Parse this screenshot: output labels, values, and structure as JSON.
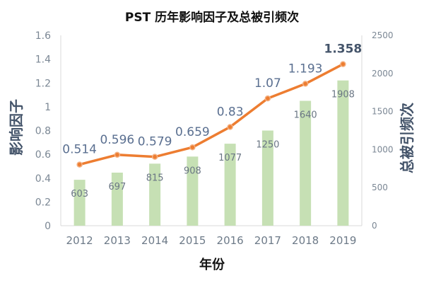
{
  "chart_data": {
    "type": "bar+line",
    "title": "PST 历年影响因子及总被引频次",
    "xlabel": "年份",
    "ylabel_left": "影响因子",
    "ylabel_right": "总被引频次",
    "categories": [
      "2012",
      "2013",
      "2014",
      "2015",
      "2016",
      "2017",
      "2018",
      "2019"
    ],
    "left_axis": {
      "min": 0,
      "max": 1.6,
      "ticks": [
        0,
        0.2,
        0.4,
        0.6,
        0.8,
        1,
        1.2,
        1.4,
        1.6
      ],
      "tick_labels": [
        "0",
        "0.2",
        "0.4",
        "0.6",
        "0.8",
        "1",
        "1.2",
        "1.4",
        "1.6"
      ]
    },
    "right_axis": {
      "min": 0,
      "max": 2500,
      "ticks": [
        0,
        500,
        1000,
        1500,
        2000,
        2500
      ],
      "tick_labels": [
        "0",
        "500",
        "1000",
        "1500",
        "2000",
        "2500"
      ]
    },
    "series": [
      {
        "name": "总被引频次",
        "kind": "bar",
        "axis": "right",
        "color": "#c6e0b4",
        "values": [
          603,
          697,
          815,
          908,
          1077,
          1250,
          1640,
          1908
        ],
        "labels": [
          "603",
          "697",
          "815",
          "908",
          "1077",
          "1250",
          "1640",
          "1908"
        ]
      },
      {
        "name": "影响因子",
        "kind": "line",
        "axis": "left",
        "color": "#ed7d31",
        "values": [
          0.514,
          0.596,
          0.579,
          0.659,
          0.83,
          1.07,
          1.193,
          1.358
        ],
        "labels": [
          "0.514",
          "0.596",
          "0.579",
          "0.659",
          "0.83",
          "1.07",
          "1.193",
          "1.358"
        ],
        "highlight_last": true
      }
    ],
    "grid": false,
    "legend": "none"
  }
}
